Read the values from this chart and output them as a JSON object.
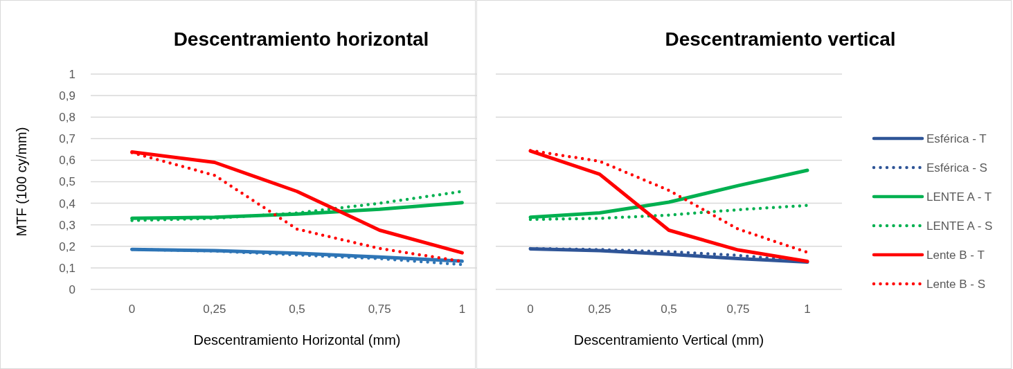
{
  "chart_data": [
    {
      "type": "line",
      "title": "Descentramiento horizontal",
      "xlabel": "Descentramiento Horizontal (mm)",
      "ylabel": "MTF (100 cy/mm)",
      "categories": [
        "0",
        "0,25",
        "0,5",
        "0,75",
        "1"
      ],
      "ylim": [
        0,
        1
      ],
      "yticks": [
        0,
        {
          "value": 0.1,
          "label": "0,1"
        },
        {
          "value": 0.2,
          "label": "0,2"
        },
        {
          "value": 0.3,
          "label": "0,3"
        },
        {
          "value": 0.4,
          "label": "0,4"
        },
        {
          "value": 0.5,
          "label": "0,5"
        },
        {
          "value": 0.6,
          "label": "0,6"
        },
        {
          "value": 0.7,
          "label": "0,7"
        },
        {
          "value": 0.8,
          "label": "0,8"
        },
        {
          "value": 0.9,
          "label": "0,9"
        },
        1
      ],
      "grid": "y",
      "legend": false,
      "series": [
        {
          "color": "#2e75b6",
          "line_style": "solid",
          "values": [
            0.186,
            0.18,
            0.168,
            0.15,
            0.131
          ]
        },
        {
          "color": "#2e75b6",
          "line_style": "dotted",
          "values": [
            0.186,
            0.178,
            0.16,
            0.143,
            0.115
          ]
        },
        {
          "color": "#00b050",
          "line_style": "solid",
          "values": [
            0.33,
            0.335,
            0.35,
            0.372,
            0.403
          ]
        },
        {
          "color": "#00b050",
          "line_style": "dotted",
          "values": [
            0.32,
            0.33,
            0.355,
            0.4,
            0.455
          ]
        },
        {
          "color": "#ff0000",
          "line_style": "solid",
          "values": [
            0.638,
            0.59,
            0.455,
            0.275,
            0.17
          ]
        },
        {
          "color": "#ff0000",
          "line_style": "dotted",
          "values": [
            0.635,
            0.53,
            0.28,
            0.19,
            0.13
          ]
        }
      ]
    },
    {
      "type": "line",
      "title": "Descentramiento vertical",
      "xlabel": "Descentramiento Vertical (mm)",
      "categories": [
        "0",
        "0,25",
        "0,5",
        "0,75",
        "1"
      ],
      "ylim": [
        0,
        1
      ],
      "yticks": [
        {
          "value": 0,
          "label": null
        },
        {
          "value": 0.2,
          "label": null
        },
        {
          "value": 0.4,
          "label": null
        },
        {
          "value": 0.6,
          "label": null
        },
        {
          "value": 0.8,
          "label": null
        },
        {
          "value": 1,
          "label": null
        }
      ],
      "tick_labels": "x",
      "grid": "y",
      "legend": "right",
      "series": [
        {
          "name": "Esférica - T",
          "color": "#2f5597",
          "line_style": "solid",
          "values": [
            0.188,
            0.18,
            0.163,
            0.143,
            0.127
          ]
        },
        {
          "name": "Esférica - S",
          "color": "#2f5597",
          "line_style": "dotted",
          "values": [
            0.19,
            0.185,
            0.175,
            0.158,
            0.13
          ]
        },
        {
          "name": "LENTE A - T",
          "color": "#00b050",
          "line_style": "solid",
          "values": [
            0.335,
            0.355,
            0.405,
            0.482,
            0.553
          ]
        },
        {
          "name": "LENTE A - S",
          "color": "#00b050",
          "line_style": "dotted",
          "values": [
            0.325,
            0.33,
            0.345,
            0.37,
            0.39
          ]
        },
        {
          "name": "Lente B - T",
          "color": "#ff0000",
          "line_style": "solid",
          "values": [
            0.643,
            0.535,
            0.275,
            0.183,
            0.13
          ]
        },
        {
          "name": "Lente B - S",
          "color": "#ff0000",
          "line_style": "dotted",
          "values": [
            0.645,
            0.595,
            0.46,
            0.28,
            0.172
          ]
        }
      ]
    }
  ]
}
